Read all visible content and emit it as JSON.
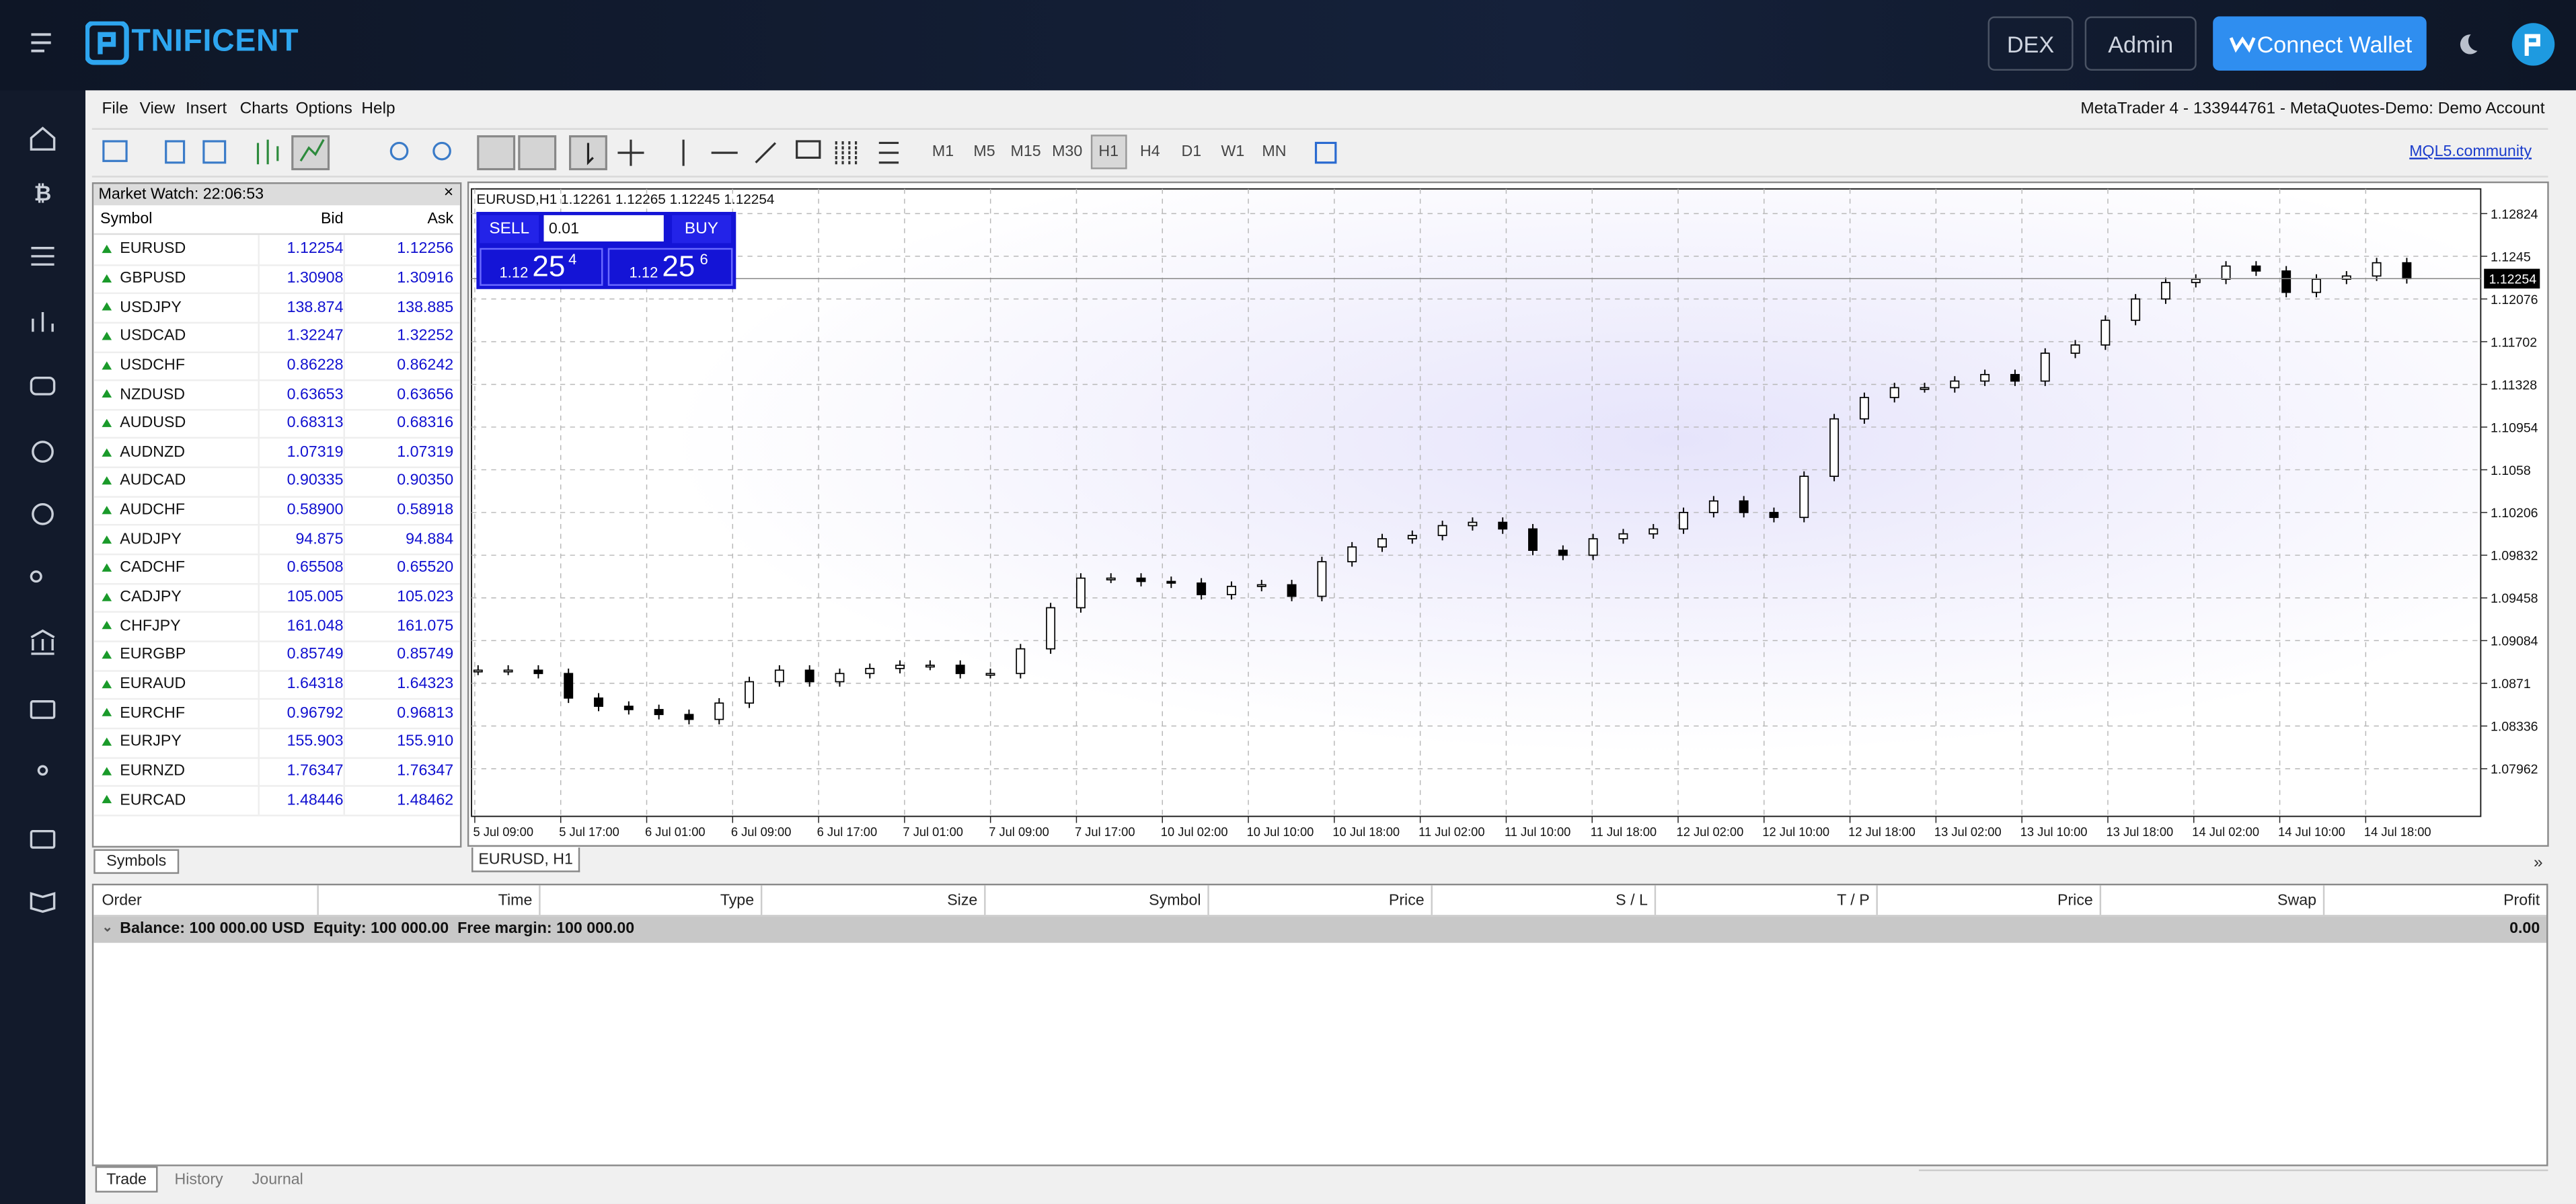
{
  "topbar": {
    "brand": "TNIFICENT",
    "buttons": [
      "DEX",
      "Admin",
      "Connect Wallet"
    ]
  },
  "menu": {
    "items": [
      "File",
      "View",
      "Insert",
      "Charts",
      "Options",
      "Help"
    ],
    "account": "MetaTrader 4 - 133944761 - MetaQuotes-Demo: Demo Account"
  },
  "toolbar": {
    "timeframes": [
      "M1",
      "M5",
      "M15",
      "M30",
      "H1",
      "H4",
      "D1",
      "W1",
      "MN"
    ],
    "link": "MQL5.community"
  },
  "market_watch": {
    "title": "Market Watch: 22:06:53",
    "columns": [
      "Symbol",
      "Bid",
      "Ask"
    ],
    "rows": [
      [
        "EURUSD",
        "1.12254",
        "1.12256"
      ],
      [
        "GBPUSD",
        "1.30908",
        "1.30916"
      ],
      [
        "USDJPY",
        "138.874",
        "138.885"
      ],
      [
        "USDCAD",
        "1.32247",
        "1.32252"
      ],
      [
        "USDCHF",
        "0.86228",
        "0.86242"
      ],
      [
        "NZDUSD",
        "0.63653",
        "0.63656"
      ],
      [
        "AUDUSD",
        "0.68313",
        "0.68316"
      ],
      [
        "AUDNZD",
        "1.07319",
        "1.07319"
      ],
      [
        "AUDCAD",
        "0.90335",
        "0.90350"
      ],
      [
        "AUDCHF",
        "0.58900",
        "0.58918"
      ],
      [
        "AUDJPY",
        "94.875",
        "94.884"
      ],
      [
        "CADCHF",
        "0.65508",
        "0.65520"
      ],
      [
        "CADJPY",
        "105.005",
        "105.023"
      ],
      [
        "CHFJPY",
        "161.048",
        "161.075"
      ],
      [
        "EURGBP",
        "0.85749",
        "0.85749"
      ],
      [
        "EURAUD",
        "1.64318",
        "1.64323"
      ],
      [
        "EURCHF",
        "0.96792",
        "0.96813"
      ],
      [
        "EURJPY",
        "155.903",
        "155.910"
      ],
      [
        "EURNZD",
        "1.76347",
        "1.76347"
      ],
      [
        "EURCAD",
        "1.48446",
        "1.48462"
      ]
    ],
    "tab": "Symbols"
  },
  "chart": {
    "type": "candlestick",
    "header": "EURUSD,H1  1.12261 1.12265 1.12245 1.12254",
    "trade": {
      "sell": "SELL",
      "buy": "BUY",
      "lot": "0.01",
      "sell_price": [
        "1.12",
        "25",
        "4"
      ],
      "buy_price": [
        "1.12",
        "25",
        "6"
      ]
    },
    "ylim": [
      1.07545,
      1.1304
    ],
    "yticks": [
      1.12824,
      1.1245,
      1.12076,
      1.11702,
      1.11328,
      1.10954,
      1.1058,
      1.10206,
      1.09832,
      1.09458,
      1.09084,
      1.0871,
      1.08336,
      1.07962
    ],
    "current_price": 1.12254,
    "time_labels": [
      "5 Jul 09:00",
      "5 Jul 17:00",
      "6 Jul 01:00",
      "6 Jul 09:00",
      "6 Jul 17:00",
      "7 Jul 01:00",
      "7 Jul 09:00",
      "7 Jul 17:00",
      "10 Jul 02:00",
      "10 Jul 10:00",
      "10 Jul 18:00",
      "11 Jul 02:00",
      "11 Jul 10:00",
      "11 Jul 18:00",
      "12 Jul 02:00",
      "12 Jul 10:00",
      "12 Jul 18:00",
      "13 Jul 02:00",
      "13 Jul 10:00",
      "13 Jul 18:00",
      "14 Jul 02:00",
      "14 Jul 10:00",
      "14 Jul 18:00"
    ],
    "closes": [
      1.08825,
      1.08825,
      1.08796,
      1.08581,
      1.08509,
      1.0848,
      1.08437,
      1.08394,
      1.08537,
      1.08724,
      1.08825,
      1.08724,
      1.08796,
      1.0884,
      1.08868,
      1.08868,
      1.08796,
      1.08796,
      1.09012,
      1.09372,
      1.09631,
      1.09631,
      1.09602,
      1.09588,
      1.09487,
      1.09559,
      1.09573,
      1.09472,
      1.09775,
      1.09904,
      1.09976,
      1.10005,
      1.10091,
      1.1012,
      1.10062,
      1.09875,
      1.09832,
      1.09976,
      1.10019,
      1.10062,
      1.10206,
      1.10307,
      1.10206,
      1.10163,
      1.10523,
      1.11026,
      1.11213,
      1.11299,
      1.11299,
      1.11357,
      1.11414,
      1.11357,
      1.11601,
      1.11673,
      1.11889,
      1.12076,
      1.1222,
      1.12249,
      1.12364,
      1.12321,
      1.12134,
      1.12249,
      1.12277,
      1.12393,
      1.12254
    ],
    "tab": "EURUSD, H1"
  },
  "terminal": {
    "columns": [
      "Order",
      "Time",
      "Type",
      "Size",
      "Symbol",
      "Price",
      "S / L",
      "T / P",
      "Price",
      "Swap",
      "Profit"
    ],
    "balance": "Balance: 100 000.00 USD  Equity: 100 000.00  Free margin: 100 000.00",
    "profit": "0.00",
    "tabs": [
      "Trade",
      "History",
      "Journal"
    ]
  }
}
